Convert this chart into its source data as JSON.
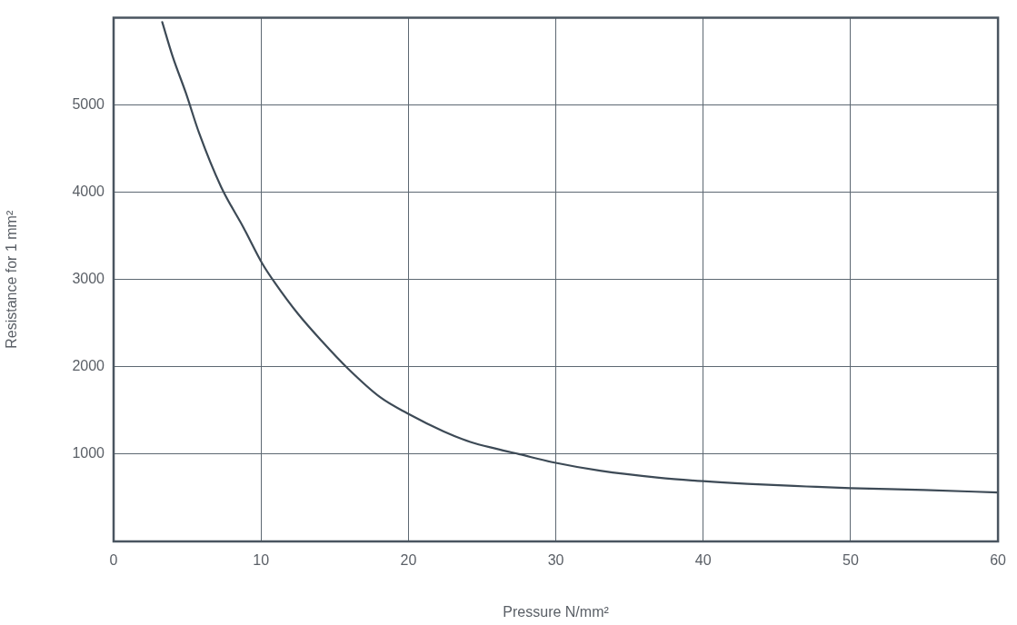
{
  "chart_data": {
    "type": "line",
    "xlabel": "Pressure N/mm²",
    "ylabel": "Resistance for 1 mm²",
    "series": [
      {
        "color": "#3d4a56",
        "x": [
          3.3,
          4.0,
          4.9,
          5.8,
          7.3,
          8.8,
          10.1,
          11.0,
          12.5,
          14.1,
          15.9,
          18.1,
          19.9,
          22.4,
          24.2,
          26.0,
          27.5,
          30.0,
          33.0,
          37.0,
          40.0,
          43.0,
          47.0,
          50.0,
          55.0,
          60.0
        ],
        "values": [
          5950,
          5560,
          5140,
          4680,
          4060,
          3600,
          3180,
          2950,
          2610,
          2300,
          1980,
          1650,
          1470,
          1260,
          1140,
          1060,
          1000,
          900,
          810,
          730,
          690,
          660,
          630,
          610,
          590,
          560
        ]
      }
    ],
    "xlim": [
      0,
      60
    ],
    "xticks": [
      0,
      10,
      20,
      30,
      40,
      50,
      60
    ],
    "ylim": [
      0,
      6000
    ],
    "yticks": [
      1000,
      2000,
      3000,
      4000,
      5000
    ],
    "grid": true,
    "legend": false,
    "marker": "none",
    "line_style": "solid"
  }
}
